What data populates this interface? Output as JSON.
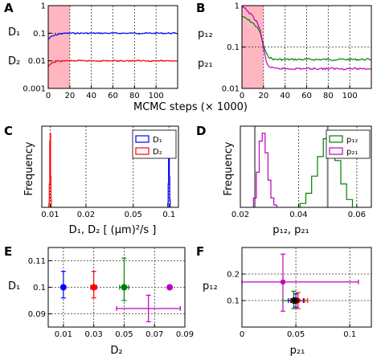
{
  "chart_data": [
    {
      "panel": "A",
      "type": "line",
      "xlabel": "MCMC steps (× 1000)",
      "yscale": "log",
      "xlim": [
        0,
        120
      ],
      "ylim": [
        0.001,
        1
      ],
      "xticks": [
        0,
        20,
        40,
        60,
        80,
        100
      ],
      "yticks": [
        0.001,
        0.01,
        0.1,
        1
      ],
      "ytick_labels": [
        "0.001",
        "0.01",
        "0.1",
        "1"
      ],
      "burn_in": [
        0,
        20
      ],
      "grid_x": [
        20,
        40,
        60,
        80,
        100
      ],
      "series": [
        {
          "name": "D1",
          "color": "#0000ff",
          "x": [
            0,
            1,
            2,
            4,
            6,
            8,
            10,
            13,
            16,
            20,
            30,
            120
          ],
          "y": [
            0.06,
            0.066,
            0.071,
            0.078,
            0.084,
            0.089,
            0.093,
            0.097,
            0.099,
            0.1,
            0.1,
            0.1
          ]
        },
        {
          "name": "D2",
          "color": "#ff0000",
          "x": [
            0,
            1,
            2,
            4,
            6,
            8,
            10,
            14,
            20,
            30,
            120
          ],
          "y": [
            0.006,
            0.0068,
            0.0075,
            0.0085,
            0.0091,
            0.0095,
            0.0097,
            0.0099,
            0.01,
            0.01,
            0.01
          ]
        }
      ]
    },
    {
      "panel": "B",
      "type": "line",
      "yscale": "log",
      "xlim": [
        0,
        120
      ],
      "ylim": [
        0.01,
        1
      ],
      "xticks": [
        0,
        20,
        40,
        60,
        80,
        100
      ],
      "yticks": [
        0.01,
        0.1,
        1
      ],
      "ytick_labels": [
        "0.01",
        "0.1",
        "1"
      ],
      "burn_in": [
        0,
        20
      ],
      "grid_x": [
        20,
        40,
        60,
        80,
        100
      ],
      "series": [
        {
          "name": "p12",
          "color": "#008000",
          "x": [
            0,
            3,
            6,
            10,
            14,
            17,
            19,
            21,
            23,
            26,
            30,
            120
          ],
          "y": [
            0.55,
            0.5,
            0.45,
            0.38,
            0.3,
            0.22,
            0.14,
            0.09,
            0.065,
            0.055,
            0.05,
            0.05
          ]
        },
        {
          "name": "p21",
          "color": "#bf00bf",
          "x": [
            0,
            3,
            6,
            10,
            14,
            17,
            19,
            21,
            23,
            26,
            30,
            120
          ],
          "y": [
            0.95,
            0.85,
            0.7,
            0.55,
            0.4,
            0.25,
            0.13,
            0.07,
            0.04,
            0.032,
            0.03,
            0.03
          ]
        }
      ]
    },
    {
      "panel": "C",
      "type": "histogram",
      "xlabel": "D₁, D₂ [ (μm)²/s ]",
      "ylabel": "Frequency",
      "xscale": "log",
      "xlim": [
        0.0085,
        0.12
      ],
      "xticks": [
        0.01,
        0.02,
        0.05,
        0.1
      ],
      "xtick_labels": [
        "0.01",
        "0.02",
        "0.05",
        "0.1"
      ],
      "legend": "top-right",
      "series": [
        {
          "name": "D1",
          "color": "#0000ff",
          "bins": [
            0.0975,
            0.0983,
            0.0991,
            0.0999,
            0.1007,
            0.1015,
            0.1023
          ],
          "counts": [
            0.05,
            0.3,
            0.85,
            0.95,
            0.4,
            0.1
          ]
        },
        {
          "name": "D2",
          "color": "#ff0000",
          "bins": [
            0.00975,
            0.00983,
            0.00991,
            0.00999,
            0.01007,
            0.01015,
            0.01023
          ],
          "counts": [
            0.05,
            0.3,
            0.85,
            0.95,
            0.4,
            0.1
          ]
        }
      ]
    },
    {
      "panel": "D",
      "type": "histogram",
      "ylabel": "Frequency",
      "xlim": [
        0.02,
        0.065
      ],
      "xticks": [
        0.02,
        0.04,
        0.06
      ],
      "xtick_labels": [
        "0.02",
        "0.04",
        "0.06"
      ],
      "xlabel_parts": [
        "p₁₂",
        "p₂₁"
      ],
      "legend": "top-right",
      "vlines": [
        0.025,
        0.05
      ],
      "series": [
        {
          "name": "p12",
          "color": "#008000",
          "bins": [
            0.0405,
            0.0425,
            0.0445,
            0.0465,
            0.0485,
            0.0505,
            0.0525,
            0.0545,
            0.0565,
            0.0585
          ],
          "counts": [
            0.05,
            0.18,
            0.4,
            0.65,
            0.88,
            0.95,
            0.6,
            0.3,
            0.1
          ]
        },
        {
          "name": "p21",
          "color": "#bf00bf",
          "bins": [
            0.0245,
            0.0255,
            0.0265,
            0.0275,
            0.0285,
            0.0295,
            0.0305,
            0.0315,
            0.0325
          ],
          "counts": [
            0.12,
            0.45,
            0.85,
            0.95,
            0.7,
            0.35,
            0.12,
            0.03
          ]
        }
      ]
    },
    {
      "panel": "E",
      "type": "scatter",
      "xlabel": "D₂",
      "ylabel": "D₁",
      "xlim": [
        0,
        0.09
      ],
      "ylim": [
        0.085,
        0.115
      ],
      "xticks": [
        0.01,
        0.03,
        0.05,
        0.07,
        0.09
      ],
      "xtick_labels": [
        "0.01",
        "0.03",
        "0.05",
        "0.07",
        "0.09"
      ],
      "yticks": [
        0.09,
        0.1,
        0.11
      ],
      "ytick_labels": [
        "0.09",
        "0.1",
        "0.11"
      ],
      "points": [
        {
          "color": "#0000ff",
          "x": 0.01,
          "y": 0.1,
          "xerr": [
            0.009,
            0.011
          ],
          "yerr": [
            0.096,
            0.106
          ]
        },
        {
          "color": "#ff0000",
          "x": 0.03,
          "y": 0.1,
          "xerr": [
            0.028,
            0.032
          ],
          "yerr": [
            0.096,
            0.106
          ]
        },
        {
          "color": "#008000",
          "x": 0.05,
          "y": 0.1,
          "xerr": [
            0.047,
            0.053
          ],
          "yerr": [
            0.095,
            0.111
          ]
        },
        {
          "color": "#bf00bf",
          "x": 0.08,
          "y": 0.1,
          "xerr": null,
          "yerr": null
        }
      ],
      "extra_bar": {
        "color": "#bf00bf",
        "x": 0.066,
        "y": 0.092,
        "xerr": [
          0.045,
          0.087
        ],
        "yerr": [
          0.087,
          0.097
        ]
      }
    },
    {
      "panel": "F",
      "type": "scatter",
      "xlabel": "p₂₁",
      "ylabel": "p₁₂",
      "xlim": [
        0,
        0.12
      ],
      "ylim": [
        0,
        0.3
      ],
      "xticks": [
        0,
        0.05,
        0.1
      ],
      "xtick_labels": [
        "0",
        "0.05",
        "0.1"
      ],
      "yticks": [
        0.1,
        0.2
      ],
      "ytick_labels": [
        "0.1",
        "0.2"
      ],
      "points": [
        {
          "color": "#bf00bf",
          "x": 0.038,
          "y": 0.17,
          "xerr": [
            0.0,
            0.108
          ],
          "yerr": [
            0.06,
            0.275
          ]
        },
        {
          "color": "#008000",
          "x": 0.048,
          "y": 0.1,
          "xerr": [
            0.038,
            0.058
          ],
          "yerr": [
            0.07,
            0.135
          ]
        },
        {
          "color": "#0000ff",
          "x": 0.05,
          "y": 0.1,
          "xerr": [
            0.043,
            0.057
          ],
          "yerr": [
            0.075,
            0.125
          ]
        },
        {
          "color": "#ff0000",
          "x": 0.052,
          "y": 0.1,
          "xerr": [
            0.045,
            0.061
          ],
          "yerr": [
            0.07,
            0.13
          ]
        },
        {
          "color": "#000000",
          "x": 0.049,
          "y": 0.1,
          "xerr": [
            0.046,
            0.052
          ],
          "yerr": [
            0.09,
            0.11
          ]
        }
      ]
    }
  ],
  "figure": {
    "panel_labels": [
      "A",
      "B",
      "C",
      "D",
      "E",
      "F"
    ],
    "shared_xlabel_AB": "MCMC steps (× 1000)",
    "a_ylabels": [
      "D₁",
      "D₂"
    ],
    "b_ylabels": [
      "p₁₂",
      "p₂₁"
    ],
    "c_legend": [
      "D₁",
      "D₂"
    ],
    "d_legend": [
      "p₁₂",
      "p₂₁"
    ],
    "c_xlabel": "D₁, D₂ [ (μm)²/s ]",
    "d_xlabel_sep": ",",
    "c_ylabel": "Frequency",
    "d_ylabel": "Frequency",
    "e_xlabel": "D₂",
    "e_ylabel": "D₁",
    "f_xlabel": "p₂₁",
    "f_ylabel": "p₁₂",
    "burn_in_color": "#ffb6c1"
  }
}
